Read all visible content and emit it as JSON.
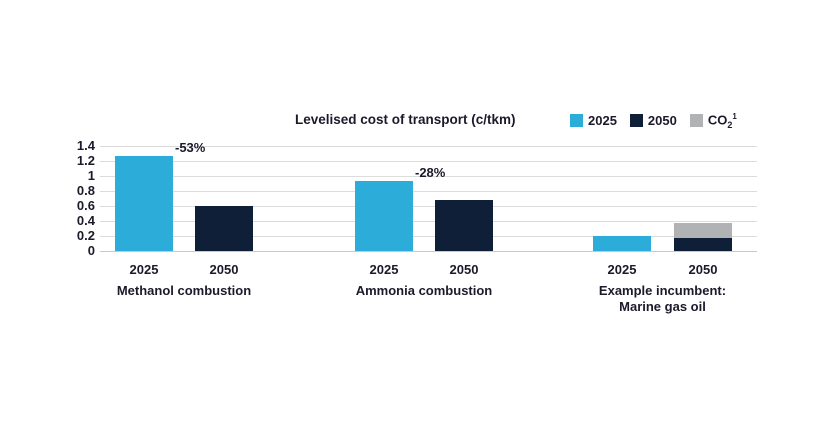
{
  "chart_data": {
    "type": "bar",
    "title": "Levelised cost of transport (c/tkm)",
    "ylabel": "",
    "xlabel": "",
    "ylim": [
      0,
      1.4
    ],
    "ytick_step": 0.2,
    "yticks": [
      "1.4",
      "1.2",
      "1",
      "0.8",
      "0.6",
      "0.4",
      "0.2",
      "0"
    ],
    "grid": true,
    "legend_position": "top-right",
    "legend": [
      {
        "label": "2025",
        "color": "#2bacd9"
      },
      {
        "label": "2050",
        "color": "#101f38"
      },
      {
        "label_main": "CO",
        "label_sub": "2",
        "label_sup": "1",
        "color": "#b1b2b3"
      }
    ],
    "groups": [
      {
        "label_lines": [
          "Methanol combustion"
        ],
        "annotation": "-53%",
        "bars": [
          {
            "category": "2025",
            "series": "2025",
            "value": 1.27
          },
          {
            "category": "2050",
            "series": "2050",
            "value": 0.6
          }
        ]
      },
      {
        "label_lines": [
          "Ammonia combustion"
        ],
        "annotation": "-28%",
        "bars": [
          {
            "category": "2025",
            "series": "2025",
            "value": 0.93
          },
          {
            "category": "2050",
            "series": "2050",
            "value": 0.68
          }
        ]
      },
      {
        "label_lines": [
          "Example incumbent:",
          "Marine gas oil"
        ],
        "annotation": "",
        "bars": [
          {
            "category": "2025",
            "series": "2025",
            "value": 0.2
          },
          {
            "category": "2050",
            "series": "2050",
            "value": 0.18,
            "stack": {
              "series": "CO2",
              "value": 0.19
            }
          }
        ]
      }
    ],
    "colors": {
      "series_2025": "#2bacd9",
      "series_2050": "#101f38",
      "series_co2": "#b1b2b3",
      "text": "#1a1a2b",
      "gridline": "#dcdcdc"
    }
  }
}
